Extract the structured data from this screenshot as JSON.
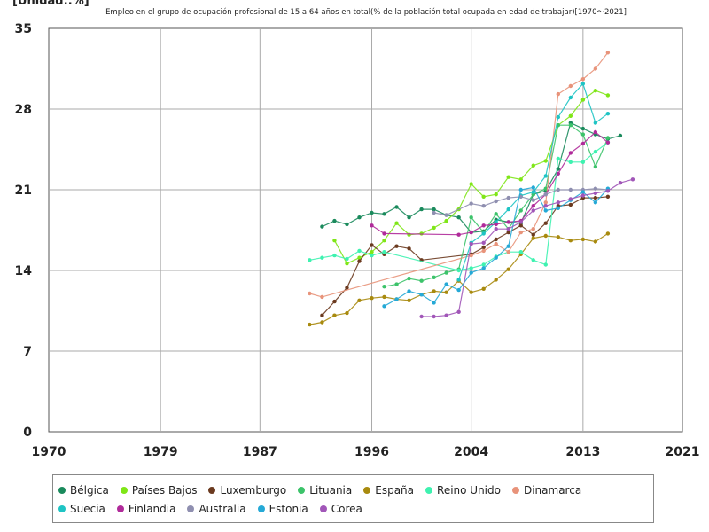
{
  "unit_label": "[Unidad:.%]",
  "chart_data": {
    "type": "line",
    "title": "Empleo en el grupo de ocupación profesional de 15 a 64 años en total(% de la población total ocupada en edad de trabajar)[1970〜2021]",
    "xlabel": "",
    "ylabel": "",
    "xlim": [
      1970,
      2021
    ],
    "ylim": [
      0,
      35
    ],
    "xticks": [
      1970,
      1979,
      1987,
      1996,
      2004,
      2013,
      2021
    ],
    "yticks": [
      0,
      7,
      14,
      21,
      28,
      35
    ],
    "grid": true,
    "legend_position": "bottom",
    "series": [
      {
        "name": "Bélgica",
        "color": "#1a8a5c",
        "points": [
          [
            1992,
            17.8
          ],
          [
            1993,
            18.3
          ],
          [
            1994,
            18.0
          ],
          [
            1995,
            18.6
          ],
          [
            1996,
            19.0
          ],
          [
            1997,
            18.9
          ],
          [
            1998,
            19.5
          ],
          [
            1999,
            18.6
          ],
          [
            2000,
            19.3
          ],
          [
            2001,
            19.3
          ],
          [
            2002,
            18.8
          ],
          [
            2003,
            18.6
          ],
          [
            2004,
            17.3
          ],
          [
            2005,
            17.4
          ],
          [
            2006,
            18.4
          ],
          [
            2007,
            18.2
          ],
          [
            2008,
            18.1
          ],
          [
            2009,
            20.6
          ],
          [
            2010,
            20.9
          ],
          [
            2011,
            22.8
          ],
          [
            2012,
            26.8
          ],
          [
            2013,
            26.3
          ],
          [
            2014,
            25.8
          ],
          [
            2015,
            25.4
          ],
          [
            2016,
            25.7
          ]
        ]
      },
      {
        "name": "Países Bajos",
        "color": "#7fe617",
        "points": [
          [
            1993,
            16.6
          ],
          [
            1994,
            14.6
          ],
          [
            1995,
            15.1
          ],
          [
            1996,
            15.6
          ],
          [
            1997,
            16.6
          ],
          [
            1998,
            18.1
          ],
          [
            1999,
            17.1
          ],
          [
            2000,
            17.2
          ],
          [
            2001,
            17.7
          ],
          [
            2002,
            18.3
          ],
          [
            2003,
            19.3
          ],
          [
            2004,
            21.5
          ],
          [
            2005,
            20.4
          ],
          [
            2006,
            20.6
          ],
          [
            2007,
            22.1
          ],
          [
            2008,
            21.9
          ],
          [
            2009,
            23.1
          ],
          [
            2010,
            23.5
          ],
          [
            2011,
            26.6
          ],
          [
            2012,
            27.4
          ],
          [
            2013,
            28.8
          ],
          [
            2014,
            29.6
          ],
          [
            2015,
            29.2
          ]
        ]
      },
      {
        "name": "Luxemburgo",
        "color": "#6b3a1f",
        "points": [
          [
            1992,
            10.1
          ],
          [
            1993,
            11.3
          ],
          [
            1994,
            12.5
          ],
          [
            1995,
            14.8
          ],
          [
            1996,
            16.2
          ],
          [
            1997,
            15.4
          ],
          [
            1998,
            16.1
          ],
          [
            1999,
            15.9
          ],
          [
            2000,
            14.9
          ],
          [
            2004,
            15.4
          ],
          [
            2005,
            16.0
          ],
          [
            2006,
            16.7
          ],
          [
            2007,
            17.3
          ],
          [
            2008,
            17.9
          ],
          [
            2009,
            17.1
          ],
          [
            2010,
            18.1
          ],
          [
            2011,
            19.6
          ],
          [
            2012,
            19.7
          ],
          [
            2013,
            20.3
          ],
          [
            2014,
            20.3
          ],
          [
            2015,
            20.4
          ]
        ]
      },
      {
        "name": "Lituania",
        "color": "#3cc36a",
        "points": [
          [
            1997,
            12.6
          ],
          [
            1998,
            12.8
          ],
          [
            1999,
            13.3
          ],
          [
            2000,
            13.1
          ],
          [
            2001,
            13.4
          ],
          [
            2002,
            13.8
          ],
          [
            2003,
            14.1
          ],
          [
            2004,
            18.6
          ],
          [
            2005,
            17.3
          ],
          [
            2006,
            18.9
          ],
          [
            2007,
            17.6
          ],
          [
            2008,
            19.2
          ],
          [
            2009,
            20.6
          ],
          [
            2010,
            21.1
          ],
          [
            2011,
            26.6
          ],
          [
            2012,
            26.6
          ],
          [
            2013,
            25.8
          ],
          [
            2014,
            23.0
          ],
          [
            2015,
            25.5
          ]
        ]
      },
      {
        "name": "España",
        "color": "#a88a0e",
        "points": [
          [
            1991,
            9.3
          ],
          [
            1992,
            9.5
          ],
          [
            1993,
            10.1
          ],
          [
            1994,
            10.3
          ],
          [
            1995,
            11.4
          ],
          [
            1996,
            11.6
          ],
          [
            1997,
            11.7
          ],
          [
            1998,
            11.5
          ],
          [
            1999,
            11.4
          ],
          [
            2000,
            11.9
          ],
          [
            2001,
            12.2
          ],
          [
            2002,
            12.1
          ],
          [
            2003,
            13.1
          ],
          [
            2004,
            12.1
          ],
          [
            2005,
            12.4
          ],
          [
            2006,
            13.2
          ],
          [
            2007,
            14.1
          ],
          [
            2008,
            15.4
          ],
          [
            2009,
            16.8
          ],
          [
            2010,
            17.0
          ],
          [
            2011,
            16.9
          ],
          [
            2012,
            16.6
          ],
          [
            2013,
            16.7
          ],
          [
            2014,
            16.5
          ],
          [
            2015,
            17.2
          ]
        ]
      },
      {
        "name": "Reino Unido",
        "color": "#3ef2b0",
        "points": [
          [
            1991,
            14.9
          ],
          [
            1992,
            15.1
          ],
          [
            1993,
            15.3
          ],
          [
            1994,
            15.0
          ],
          [
            1995,
            15.7
          ],
          [
            1996,
            15.3
          ],
          [
            1997,
            15.6
          ],
          [
            2003,
            14.0
          ],
          [
            2004,
            14.2
          ],
          [
            2005,
            14.5
          ],
          [
            2006,
            15.2
          ],
          [
            2007,
            15.6
          ],
          [
            2008,
            15.6
          ],
          [
            2009,
            14.9
          ],
          [
            2010,
            14.5
          ],
          [
            2011,
            23.7
          ],
          [
            2012,
            23.4
          ],
          [
            2013,
            23.4
          ],
          [
            2014,
            24.3
          ],
          [
            2015,
            25.1
          ]
        ]
      },
      {
        "name": "Dinamarca",
        "color": "#e8937a",
        "points": [
          [
            1991,
            12.0
          ],
          [
            1992,
            11.7
          ],
          [
            2004,
            15.3
          ],
          [
            2005,
            15.7
          ],
          [
            2006,
            16.3
          ],
          [
            2007,
            15.6
          ],
          [
            2008,
            17.3
          ],
          [
            2009,
            17.6
          ],
          [
            2010,
            19.9
          ],
          [
            2011,
            29.3
          ],
          [
            2012,
            30.0
          ],
          [
            2013,
            30.6
          ],
          [
            2014,
            31.5
          ],
          [
            2015,
            32.9
          ]
        ]
      },
      {
        "name": "Suecia",
        "color": "#1ec4c4",
        "points": [
          [
            2003,
            13.2
          ],
          [
            2004,
            16.4
          ],
          [
            2005,
            17.2
          ],
          [
            2006,
            18.2
          ],
          [
            2007,
            19.3
          ],
          [
            2008,
            20.5
          ],
          [
            2009,
            20.8
          ],
          [
            2010,
            22.2
          ],
          [
            2011,
            27.3
          ],
          [
            2012,
            29.0
          ],
          [
            2013,
            30.2
          ],
          [
            2014,
            26.8
          ],
          [
            2015,
            27.6
          ]
        ]
      },
      {
        "name": "Finlandia",
        "color": "#b02a9a",
        "points": [
          [
            1996,
            17.9
          ],
          [
            1997,
            17.2
          ],
          [
            2003,
            17.1
          ],
          [
            2004,
            17.3
          ],
          [
            2005,
            17.9
          ],
          [
            2006,
            18.0
          ],
          [
            2007,
            18.2
          ],
          [
            2008,
            18.3
          ],
          [
            2009,
            19.6
          ],
          [
            2010,
            20.6
          ],
          [
            2011,
            22.4
          ],
          [
            2012,
            24.2
          ],
          [
            2013,
            25.0
          ],
          [
            2014,
            26.0
          ],
          [
            2015,
            25.1
          ]
        ]
      },
      {
        "name": "Australia",
        "color": "#8f8fb0",
        "points": [
          [
            2001,
            19.0
          ],
          [
            2002,
            18.8
          ],
          [
            2004,
            19.8
          ],
          [
            2005,
            19.6
          ],
          [
            2006,
            20.0
          ],
          [
            2007,
            20.3
          ],
          [
            2008,
            20.4
          ],
          [
            2009,
            20.1
          ],
          [
            2010,
            20.6
          ],
          [
            2011,
            21.0
          ],
          [
            2012,
            21.0
          ],
          [
            2013,
            21.0
          ],
          [
            2014,
            21.1
          ],
          [
            2015,
            21.0
          ]
        ]
      },
      {
        "name": "Estonia",
        "color": "#25a9d6",
        "points": [
          [
            1997,
            10.9
          ],
          [
            1998,
            11.5
          ],
          [
            1999,
            12.2
          ],
          [
            2000,
            11.9
          ],
          [
            2001,
            11.2
          ],
          [
            2002,
            12.8
          ],
          [
            2003,
            12.3
          ],
          [
            2004,
            13.8
          ],
          [
            2005,
            14.2
          ],
          [
            2006,
            15.1
          ],
          [
            2007,
            16.1
          ],
          [
            2008,
            21.0
          ],
          [
            2009,
            21.2
          ],
          [
            2010,
            19.2
          ],
          [
            2011,
            19.4
          ],
          [
            2012,
            20.1
          ],
          [
            2013,
            20.8
          ],
          [
            2014,
            19.9
          ],
          [
            2015,
            21.1
          ]
        ]
      },
      {
        "name": "Corea",
        "color": "#a156b8",
        "points": [
          [
            2000,
            10.0
          ],
          [
            2001,
            10.0
          ],
          [
            2002,
            10.1
          ],
          [
            2003,
            10.4
          ],
          [
            2004,
            16.3
          ],
          [
            2005,
            16.4
          ],
          [
            2006,
            17.6
          ],
          [
            2007,
            17.6
          ],
          [
            2008,
            18.2
          ],
          [
            2009,
            19.2
          ],
          [
            2010,
            19.6
          ],
          [
            2011,
            19.9
          ],
          [
            2012,
            20.2
          ],
          [
            2013,
            20.5
          ],
          [
            2014,
            20.7
          ],
          [
            2015,
            20.9
          ],
          [
            2016,
            21.6
          ],
          [
            2017,
            21.9
          ]
        ]
      }
    ]
  }
}
